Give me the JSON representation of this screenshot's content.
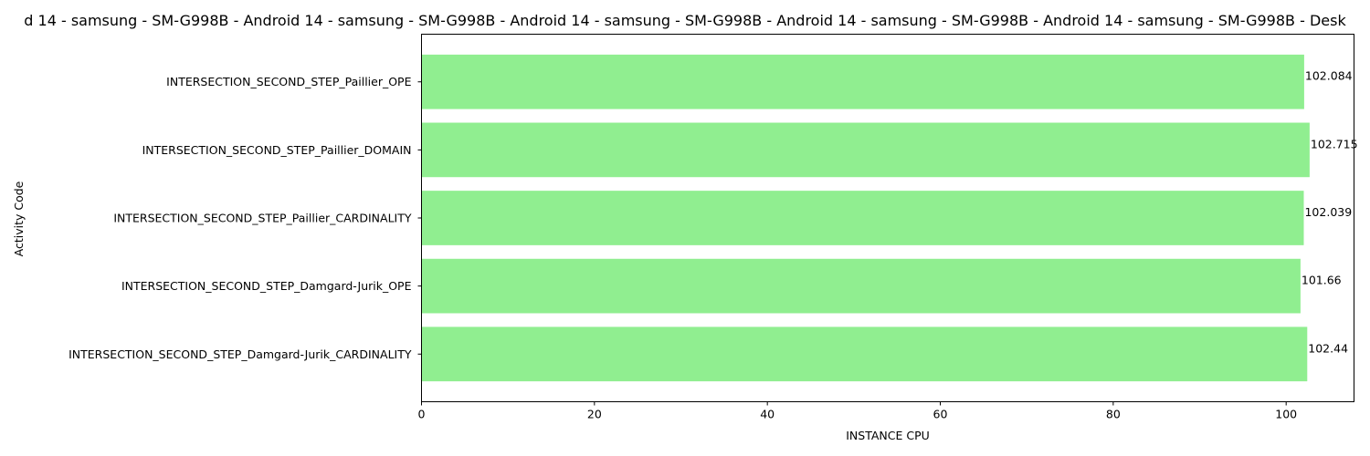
{
  "chart_data": {
    "type": "bar",
    "orientation": "horizontal",
    "title": "d 14 - samsung - SM-G998B - Android 14 - samsung - SM-G998B - Android 14 - samsung - SM-G998B - Android 14 - samsung - SM-G998B - Android 14 - samsung - SM-G998B - Desk",
    "xlabel": "INSTANCE CPU",
    "ylabel": "Activity Code",
    "categories": [
      "INTERSECTION_SECOND_STEP_Paillier_OPE",
      "INTERSECTION_SECOND_STEP_Paillier_DOMAIN",
      "INTERSECTION_SECOND_STEP_Paillier_CARDINALITY",
      "INTERSECTION_SECOND_STEP_Damgard-Jurik_OPE",
      "INTERSECTION_SECOND_STEP_Damgard-Jurik_CARDINALITY"
    ],
    "values": [
      102.084,
      102.715,
      102.039,
      101.66,
      102.44
    ],
    "value_labels": [
      "102.084",
      "102.715",
      "102.039",
      "101.66",
      "102.44"
    ],
    "xlim": [
      0,
      107.85
    ],
    "xticks": [
      0,
      20,
      40,
      60,
      80,
      100
    ],
    "xtick_labels": [
      "0",
      "20",
      "40",
      "60",
      "80",
      "100"
    ],
    "grid": false,
    "bar_color": "#90ee90"
  }
}
